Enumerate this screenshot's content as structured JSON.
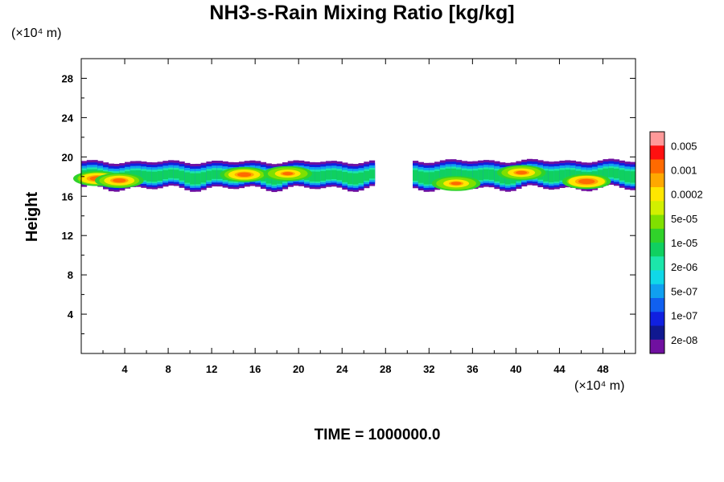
{
  "chart_data": {
    "type": "heatmap",
    "title": "NH3-s-Rain Mixing Ratio [kg/kg]",
    "ylabel": "Height",
    "xlabel": "",
    "x_unit": "(×10⁴ m)",
    "y_unit": "(×10⁴ m)",
    "xlim": [
      0,
      51
    ],
    "ylim": [
      0,
      30
    ],
    "x_ticks": [
      "4",
      "8",
      "12",
      "16",
      "20",
      "24",
      "28",
      "32",
      "36",
      "40",
      "44",
      "48"
    ],
    "y_ticks": [
      "4",
      "8",
      "12",
      "16",
      "20",
      "24",
      "28"
    ],
    "colorbar": {
      "labels": [
        "0.005",
        "0.001",
        "0.0002",
        "5e-05",
        "1e-05",
        "2e-06",
        "5e-07",
        "1e-07",
        "2e-08"
      ],
      "colors": [
        "#ff9999",
        "#ff1010",
        "#ff6a00",
        "#ffa800",
        "#ffe600",
        "#d2f000",
        "#80e000",
        "#30d22a",
        "#10d060",
        "#1ce6aa",
        "#10d8e8",
        "#10a0f0",
        "#1060f0",
        "#1020e0",
        "#101890",
        "#7010a0"
      ]
    },
    "cloud_layers": [
      {
        "x_start": 0,
        "x_end": 27,
        "y_bottom": 16.2,
        "y_top": 19.8
      },
      {
        "x_start": 30.5,
        "x_end": 51,
        "y_bottom": 16.2,
        "y_top": 19.9
      }
    ],
    "cores": [
      {
        "x": 1.5,
        "y": 17.8,
        "level": 0.9
      },
      {
        "x": 3.5,
        "y": 17.6,
        "level": 0.75
      },
      {
        "x": 15,
        "y": 18.2,
        "level": 0.8
      },
      {
        "x": 19,
        "y": 18.3,
        "level": 0.6
      },
      {
        "x": 34.5,
        "y": 17.3,
        "level": 0.6
      },
      {
        "x": 40.5,
        "y": 18.4,
        "level": 0.65
      },
      {
        "x": 46.5,
        "y": 17.5,
        "level": 0.95
      }
    ]
  },
  "footer": {
    "time_label": "TIME = 1000000.0"
  }
}
